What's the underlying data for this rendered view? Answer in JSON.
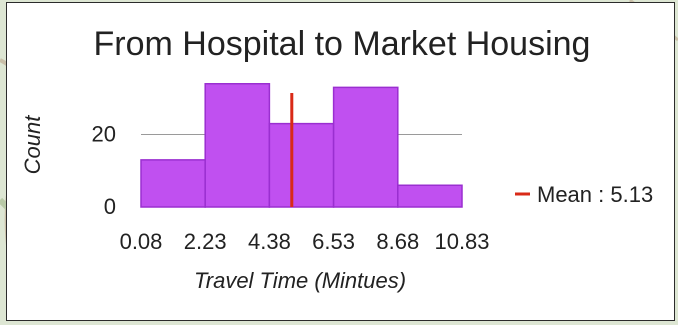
{
  "chart_data": {
    "type": "bar",
    "title": "From Hospital to Market Housing",
    "xlabel": "Travel Time (Mintues)",
    "ylabel": "Count",
    "bin_edges": [
      0.08,
      2.23,
      4.38,
      6.53,
      8.68,
      10.83
    ],
    "x_tick_labels": [
      "0.08",
      "2.23",
      "4.38",
      "6.53",
      "8.68",
      "10.83"
    ],
    "values": [
      13,
      34,
      23,
      33,
      6
    ],
    "y_ticks": [
      0,
      20
    ],
    "ylim": [
      0,
      40
    ],
    "grid": "horizontal",
    "bar_color": "#c050f0",
    "bar_edge_color": "#9a2fd0",
    "mean": {
      "value": 5.13,
      "label": "Mean : 5.13",
      "color": "#d92a17"
    },
    "legend_position": "right"
  }
}
